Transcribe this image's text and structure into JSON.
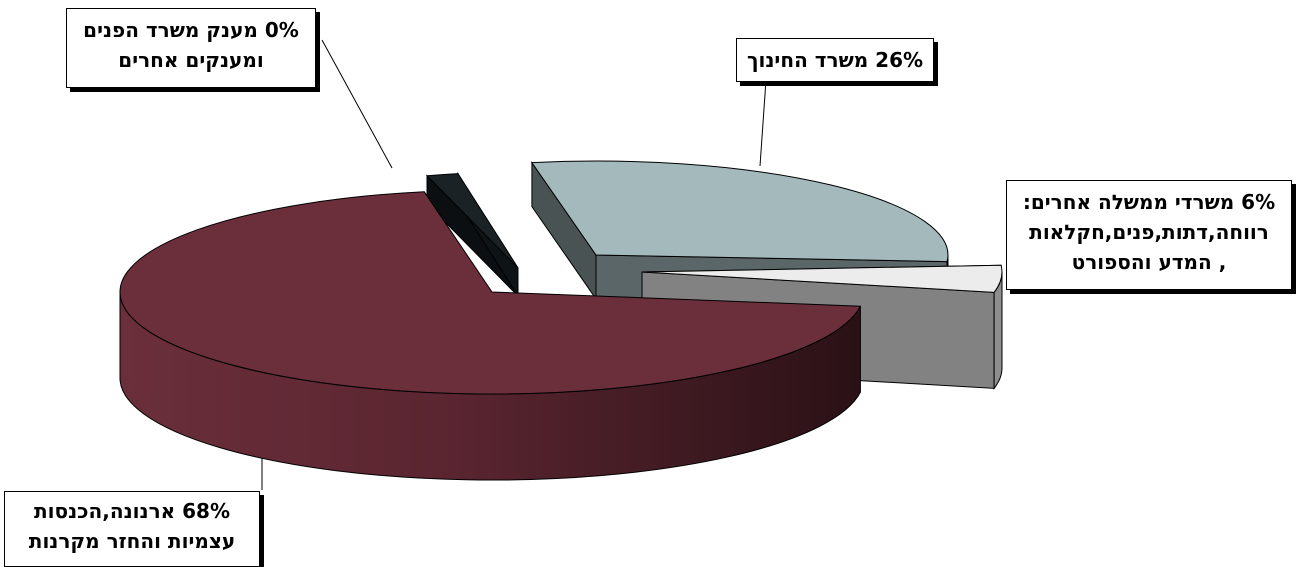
{
  "chart_data": {
    "type": "pie",
    "style": "3d-exploded",
    "categories": [
      "משרד החינוך",
      "משרדי ממשלה אחרים: רווחה,דתות,פנים,חקלאות , המדע והספורט",
      "ארנונה,הכנסות עצמיות והחזר מקרנות",
      "מענק משרד הפנים ומענקים אחרים"
    ],
    "values": [
      26,
      6,
      68,
      0
    ],
    "colors": [
      "#a3b9bb",
      "#ececec",
      "#6a2f3b",
      "#1a2226"
    ],
    "labels": [
      {
        "lines": [
          "26% משרד החינוך"
        ]
      },
      {
        "lines": [
          "6% משרדי ממשלה אחרים:",
          "רווחה,דתות,פנים,חקלאות",
          ", המדע והספורט"
        ]
      },
      {
        "lines": [
          "68% ארנונה,הכנסות",
          "עצמיות והחזר מקרנות"
        ]
      },
      {
        "lines": [
          "0% מענק משרד הפנים",
          "ומענקים אחרים"
        ]
      }
    ]
  }
}
